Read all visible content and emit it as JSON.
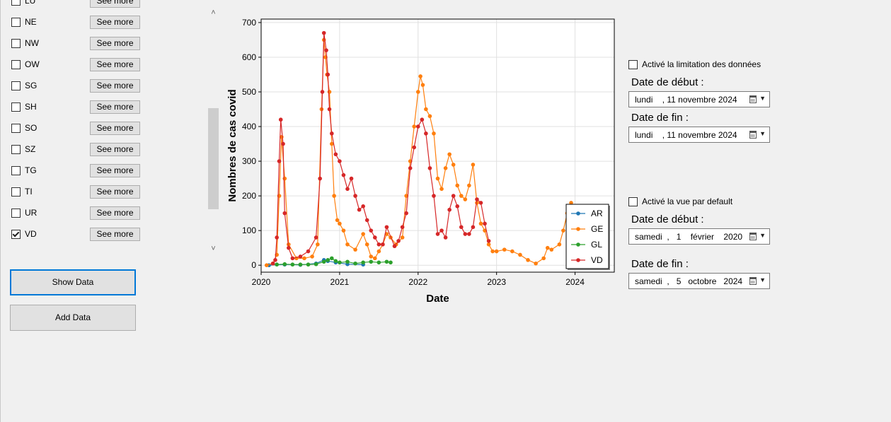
{
  "cantons": [
    {
      "code": "LU",
      "checked": false,
      "button": "See more"
    },
    {
      "code": "NE",
      "checked": false,
      "button": "See more"
    },
    {
      "code": "NW",
      "checked": false,
      "button": "See more"
    },
    {
      "code": "OW",
      "checked": false,
      "button": "See more"
    },
    {
      "code": "SG",
      "checked": false,
      "button": "See more"
    },
    {
      "code": "SH",
      "checked": false,
      "button": "See more"
    },
    {
      "code": "SO",
      "checked": false,
      "button": "See more"
    },
    {
      "code": "SZ",
      "checked": false,
      "button": "See more"
    },
    {
      "code": "TG",
      "checked": false,
      "button": "See more"
    },
    {
      "code": "TI",
      "checked": false,
      "button": "See more"
    },
    {
      "code": "UR",
      "checked": false,
      "button": "See more"
    },
    {
      "code": "VD",
      "checked": true,
      "button": "See more"
    }
  ],
  "scroll": {
    "up_icon": "chevron-up-icon",
    "down_icon": "chevron-down-icon"
  },
  "buttons": {
    "show_data": "Show Data",
    "add_data": "Add Data"
  },
  "limit_panel": {
    "checkbox_label": "Activé la limitation des données",
    "checked": false,
    "start_label": "Date de début :",
    "start_value": "lundi    , 11 novembre 2024",
    "end_label": "Date de fin :",
    "end_value": "lundi    , 11 novembre 2024"
  },
  "default_panel": {
    "checkbox_label": "Activé la vue par default",
    "checked": false,
    "start_label": "Date de début :",
    "start_value": "samedi  ,   1    février    2020",
    "end_label": "Date de fin :",
    "end_value": "samedi  ,   5   octobre   2024"
  },
  "chart_data": {
    "type": "line",
    "xlabel": "Date",
    "ylabel": "Nombres de cas covid",
    "xlim": [
      2020.0,
      2024.5
    ],
    "ylim": [
      -20,
      710
    ],
    "x_ticks": [
      "2020",
      "2021",
      "2022",
      "2023",
      "2024"
    ],
    "x_tick_values": [
      2020,
      2021,
      2022,
      2023,
      2024
    ],
    "y_ticks": [
      0,
      100,
      200,
      300,
      400,
      500,
      600,
      700
    ],
    "grid": true,
    "legend_position": "bottom-right",
    "series": [
      {
        "name": "AR",
        "color": "#1f77b4",
        "x": [
          2020.1,
          2020.3,
          2020.5,
          2020.7,
          2020.8,
          2020.85,
          2020.95,
          2021.1,
          2021.3
        ],
        "y": [
          0,
          2,
          1,
          5,
          15,
          12,
          8,
          3,
          2
        ]
      },
      {
        "name": "GE",
        "color": "#ff7f0e",
        "x": [
          2020.07,
          2020.15,
          2020.2,
          2020.23,
          2020.26,
          2020.3,
          2020.35,
          2020.45,
          2020.55,
          2020.65,
          2020.72,
          2020.77,
          2020.8,
          2020.82,
          2020.84,
          2020.87,
          2020.9,
          2020.93,
          2020.97,
          2021.0,
          2021.05,
          2021.1,
          2021.2,
          2021.3,
          2021.35,
          2021.4,
          2021.45,
          2021.5,
          2021.55,
          2021.6,
          2021.65,
          2021.72,
          2021.8,
          2021.85,
          2021.9,
          2021.95,
          2022.0,
          2022.03,
          2022.06,
          2022.1,
          2022.15,
          2022.2,
          2022.25,
          2022.3,
          2022.35,
          2022.4,
          2022.45,
          2022.5,
          2022.55,
          2022.6,
          2022.65,
          2022.7,
          2022.75,
          2022.8,
          2022.85,
          2022.9,
          2022.95,
          2023.0,
          2023.1,
          2023.2,
          2023.3,
          2023.4,
          2023.5,
          2023.6,
          2023.65,
          2023.7,
          2023.8,
          2023.85,
          2023.9,
          2023.95
        ],
        "y": [
          0,
          5,
          30,
          200,
          370,
          250,
          60,
          20,
          20,
          25,
          60,
          450,
          650,
          600,
          550,
          500,
          350,
          200,
          130,
          120,
          100,
          60,
          45,
          90,
          60,
          25,
          20,
          40,
          60,
          90,
          80,
          60,
          80,
          200,
          300,
          400,
          500,
          545,
          520,
          450,
          430,
          380,
          250,
          220,
          280,
          320,
          290,
          230,
          200,
          190,
          230,
          290,
          180,
          120,
          100,
          60,
          40,
          40,
          45,
          40,
          30,
          15,
          5,
          20,
          50,
          45,
          60,
          100,
          150,
          180
        ]
      },
      {
        "name": "GL",
        "color": "#2ca02c",
        "x": [
          2020.2,
          2020.3,
          2020.4,
          2020.5,
          2020.6,
          2020.7,
          2020.8,
          2020.85,
          2020.9,
          2020.95,
          2021.0,
          2021.1,
          2021.2,
          2021.3,
          2021.4,
          2021.5,
          2021.6,
          2021.65
        ],
        "y": [
          2,
          3,
          2,
          2,
          2,
          3,
          10,
          15,
          20,
          12,
          8,
          10,
          5,
          8,
          10,
          8,
          10,
          8
        ]
      },
      {
        "name": "VD",
        "color": "#d62728",
        "x": [
          2020.15,
          2020.18,
          2020.2,
          2020.23,
          2020.25,
          2020.28,
          2020.3,
          2020.35,
          2020.4,
          2020.5,
          2020.6,
          2020.7,
          2020.75,
          2020.78,
          2020.8,
          2020.83,
          2020.85,
          2020.87,
          2020.9,
          2020.95,
          2021.0,
          2021.05,
          2021.1,
          2021.15,
          2021.2,
          2021.25,
          2021.3,
          2021.35,
          2021.4,
          2021.45,
          2021.5,
          2021.55,
          2021.6,
          2021.7,
          2021.75,
          2021.8,
          2021.85,
          2021.9,
          2021.95,
          2022.0,
          2022.05,
          2022.1,
          2022.15,
          2022.2,
          2022.25,
          2022.3,
          2022.35,
          2022.4,
          2022.45,
          2022.5,
          2022.55,
          2022.6,
          2022.65,
          2022.7,
          2022.75,
          2022.8,
          2022.85,
          2022.9
        ],
        "y": [
          5,
          15,
          80,
          300,
          420,
          350,
          150,
          50,
          20,
          25,
          40,
          80,
          250,
          500,
          670,
          620,
          550,
          450,
          380,
          320,
          300,
          260,
          220,
          250,
          200,
          160,
          170,
          130,
          100,
          80,
          60,
          60,
          110,
          55,
          70,
          110,
          150,
          280,
          340,
          400,
          420,
          380,
          280,
          200,
          90,
          100,
          80,
          160,
          200,
          170,
          110,
          90,
          90,
          110,
          190,
          180,
          120,
          70
        ]
      }
    ]
  }
}
